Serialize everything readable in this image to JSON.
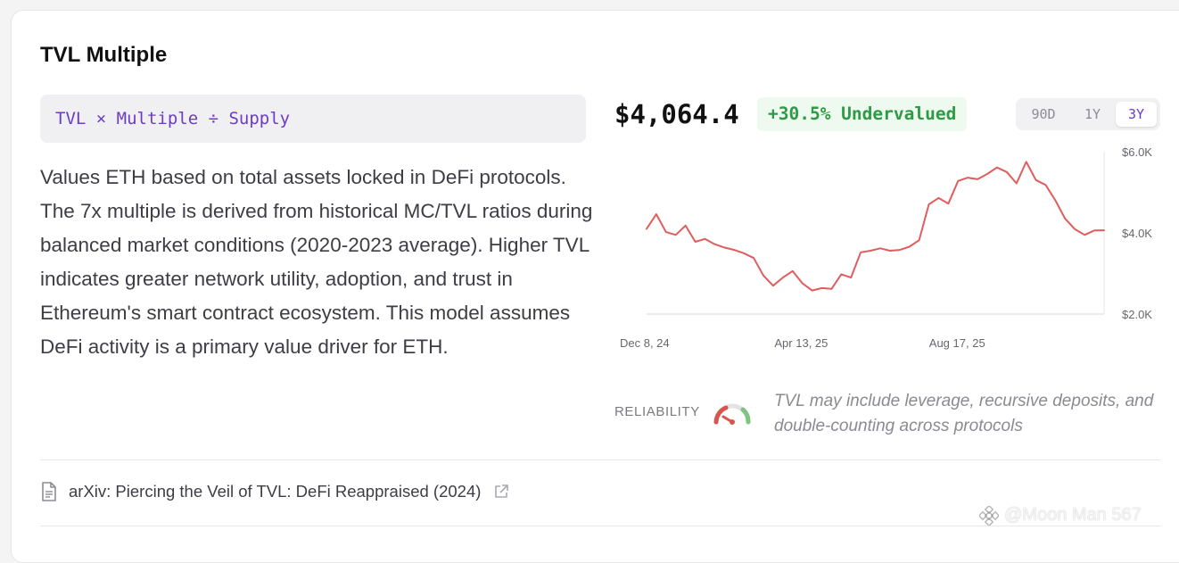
{
  "card": {
    "title": "TVL Multiple",
    "formula": "TVL × Multiple ÷ Supply",
    "description": "Values ETH based on total assets locked in DeFi protocols. The 7x multiple is derived from historical MC/TVL ratios during balanced market conditions (2020-2023 average). Higher TVL indicates greater network utility, adoption, and trust in Ethereum's smart contract ecosystem. This model assumes DeFi activity is a primary value driver for ETH."
  },
  "valuation": {
    "price": "$4,064.4",
    "badge": "+30.5% Undervalued",
    "badge_color": "#2f9a45"
  },
  "range": {
    "options": [
      "90D",
      "1Y",
      "3Y"
    ],
    "selected": "3Y"
  },
  "chart_data": {
    "type": "line",
    "x_tick_labels": [
      "Dec 8, 24",
      "Apr 13, 25",
      "Aug 17, 25"
    ],
    "y_tick_labels": [
      "$6.0K",
      "$4.0K",
      "$2.0K"
    ],
    "ylim": [
      2000,
      6000
    ],
    "line_color": "#e05d5d",
    "series": [
      {
        "values": [
          4100,
          4460,
          4020,
          3950,
          4180,
          3780,
          3850,
          3720,
          3640,
          3580,
          3500,
          3380,
          2950,
          2700,
          2900,
          3060,
          2760,
          2580,
          2640,
          2620,
          2980,
          2900,
          3520,
          3560,
          3620,
          3560,
          3580,
          3660,
          3820,
          4700,
          4860,
          4720,
          5280,
          5360,
          5320,
          5450,
          5610,
          5500,
          5220,
          5750,
          5300,
          5180,
          4800,
          4350,
          4090,
          3950,
          4060,
          4064
        ]
      }
    ]
  },
  "reliability": {
    "label": "RELIABILITY",
    "note": "TVL may include leverage, recursive deposits, and double-counting across protocols"
  },
  "source": {
    "label": "arXiv: Piercing the Veil of TVL: DeFi Reappraised (2024)"
  },
  "watermark": {
    "text": "@Moon Man 567"
  }
}
